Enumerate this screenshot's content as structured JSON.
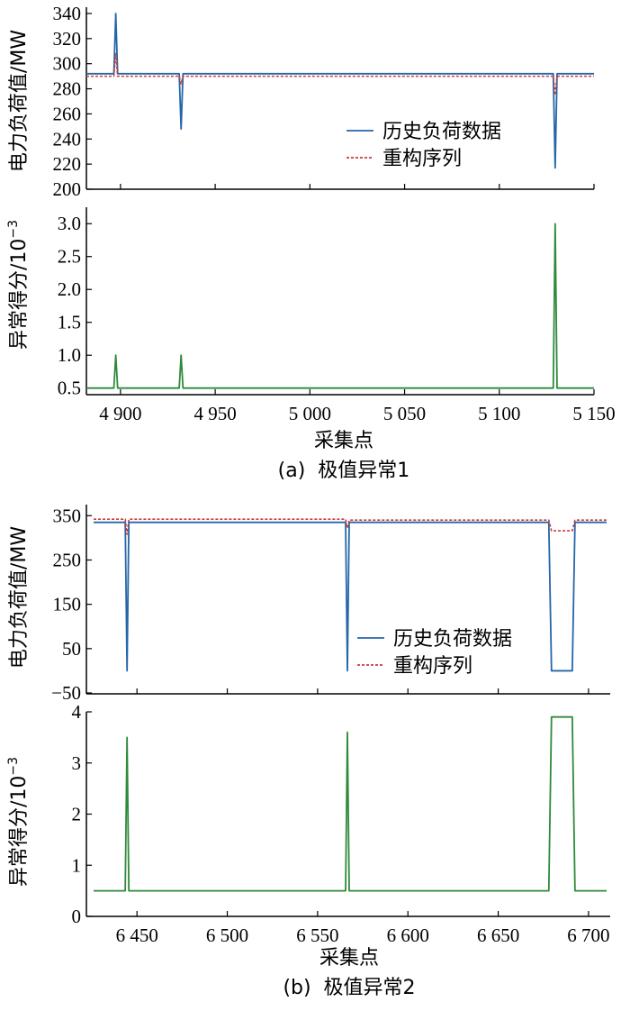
{
  "colors": {
    "history": "#2566a8",
    "reconstructed": "#cc3b3b",
    "score": "#2f8a3a",
    "axis": "#000000"
  },
  "panels": [
    {
      "caption": "(a)  极值异常1",
      "load_ylabel": "电力负荷值/MW",
      "score_ylabel": "异常得分/10",
      "score_ylabel_exp": "−3",
      "xlabel": "采集点",
      "legend": {
        "history": "历史负荷数据",
        "reconstructed": "重构序列"
      }
    },
    {
      "caption": "(b)  极值异常2",
      "load_ylabel": "电力负荷值/MW",
      "score_ylabel": "异常得分/10",
      "score_ylabel_exp": "−3",
      "xlabel": "采集点",
      "legend": {
        "history": "历史负荷数据",
        "reconstructed": "重构序列"
      }
    }
  ],
  "chart_data": [
    {
      "type": "line",
      "panel": "a-top",
      "xlim": [
        4882,
        5150
      ],
      "ylim": [
        200,
        345
      ],
      "yticks": [
        200,
        220,
        240,
        260,
        280,
        300,
        320,
        340
      ],
      "ytick_labels": [
        "200",
        "220",
        "240",
        "260",
        "280",
        "300",
        "320",
        "340"
      ],
      "legend_position": "right",
      "series": [
        {
          "name": "历史负荷数据",
          "style": "solid",
          "color": "#2566a8",
          "x": [
            4882,
            4896.5,
            4897.5,
            4898.5,
            4931,
            4932,
            4933,
            5128.5,
            5129.5,
            5130.5,
            5150
          ],
          "y": [
            292,
            292,
            340,
            292,
            292,
            248,
            292,
            292,
            217,
            292,
            292
          ]
        },
        {
          "name": "重构序列",
          "style": "dashed",
          "color": "#cc3b3b",
          "x": [
            4882,
            4896.5,
            4897.5,
            4898.5,
            4931,
            4932,
            4933,
            5128.5,
            5129.5,
            5130.5,
            5150
          ],
          "y": [
            290,
            290,
            308,
            290,
            290,
            284,
            290,
            290,
            275,
            290,
            290
          ]
        }
      ]
    },
    {
      "type": "line",
      "panel": "a-bottom",
      "xlim": [
        4882,
        5150
      ],
      "ylim": [
        0.4,
        3.25
      ],
      "yticks": [
        0.5,
        1.0,
        1.5,
        2.0,
        2.5,
        3.0
      ],
      "ytick_labels": [
        "0.5",
        "1.0",
        "1.5",
        "2.0",
        "2.5",
        "3.0"
      ],
      "xticks": [
        4900,
        4950,
        5000,
        5050,
        5100,
        5150
      ],
      "xtick_labels": [
        "4 900",
        "4 950",
        "5 000",
        "5 050",
        "5 100",
        "5 150"
      ],
      "series": [
        {
          "name": "",
          "style": "solid",
          "color": "#2f8a3a",
          "x": [
            4882,
            4896.5,
            4897.5,
            4898.5,
            4931,
            4932,
            4933,
            5128.5,
            5129.5,
            5130.5,
            5150
          ],
          "y": [
            0.5,
            0.5,
            1.0,
            0.5,
            0.5,
            1.0,
            0.5,
            0.5,
            3.0,
            0.5,
            0.5
          ]
        }
      ]
    },
    {
      "type": "line",
      "panel": "b-top",
      "xlim": [
        6422,
        6712
      ],
      "ylim": [
        -52,
        375
      ],
      "yticks": [
        -50,
        50,
        150,
        250,
        350
      ],
      "ytick_labels": [
        "−50",
        "50",
        "150",
        "250",
        "350"
      ],
      "legend_position": "right",
      "series": [
        {
          "name": "历史负荷数据",
          "style": "solid",
          "color": "#2566a8",
          "x": [
            6426,
            6443.5,
            6444.5,
            6445.5,
            6565.5,
            6566.5,
            6567.5,
            6678,
            6679.5,
            6691,
            6692.5,
            6710
          ],
          "y": [
            335,
            335,
            0,
            335,
            335,
            0,
            335,
            335,
            0,
            0,
            335,
            335
          ]
        },
        {
          "name": "重构序列",
          "style": "dashed",
          "color": "#cc3b3b",
          "x": [
            6426,
            6443.5,
            6444.5,
            6445.5,
            6565.5,
            6566.5,
            6567.5,
            6678,
            6679.5,
            6691,
            6692.5,
            6710
          ],
          "y": [
            342,
            342,
            308,
            342,
            342,
            322,
            340,
            340,
            316,
            316,
            340,
            340
          ]
        }
      ]
    },
    {
      "type": "line",
      "panel": "b-bottom",
      "xlim": [
        6422,
        6712
      ],
      "ylim": [
        0,
        4.0
      ],
      "yticks": [
        0,
        1,
        2,
        3,
        4
      ],
      "ytick_labels": [
        "0",
        "1",
        "2",
        "3",
        "4"
      ],
      "xticks": [
        6450,
        6500,
        6550,
        6600,
        6650,
        6700
      ],
      "xtick_labels": [
        "6 450",
        "6 500",
        "6 550",
        "6 600",
        "6 650",
        "6 700"
      ],
      "series": [
        {
          "name": "",
          "style": "solid",
          "color": "#2f8a3a",
          "x": [
            6426,
            6443.5,
            6444.5,
            6445.5,
            6565.5,
            6566.5,
            6567.5,
            6678,
            6679.5,
            6691,
            6692.5,
            6710
          ],
          "y": [
            0.5,
            0.5,
            3.5,
            0.5,
            0.5,
            3.6,
            0.5,
            0.5,
            3.9,
            3.9,
            0.5,
            0.5
          ]
        }
      ]
    }
  ]
}
